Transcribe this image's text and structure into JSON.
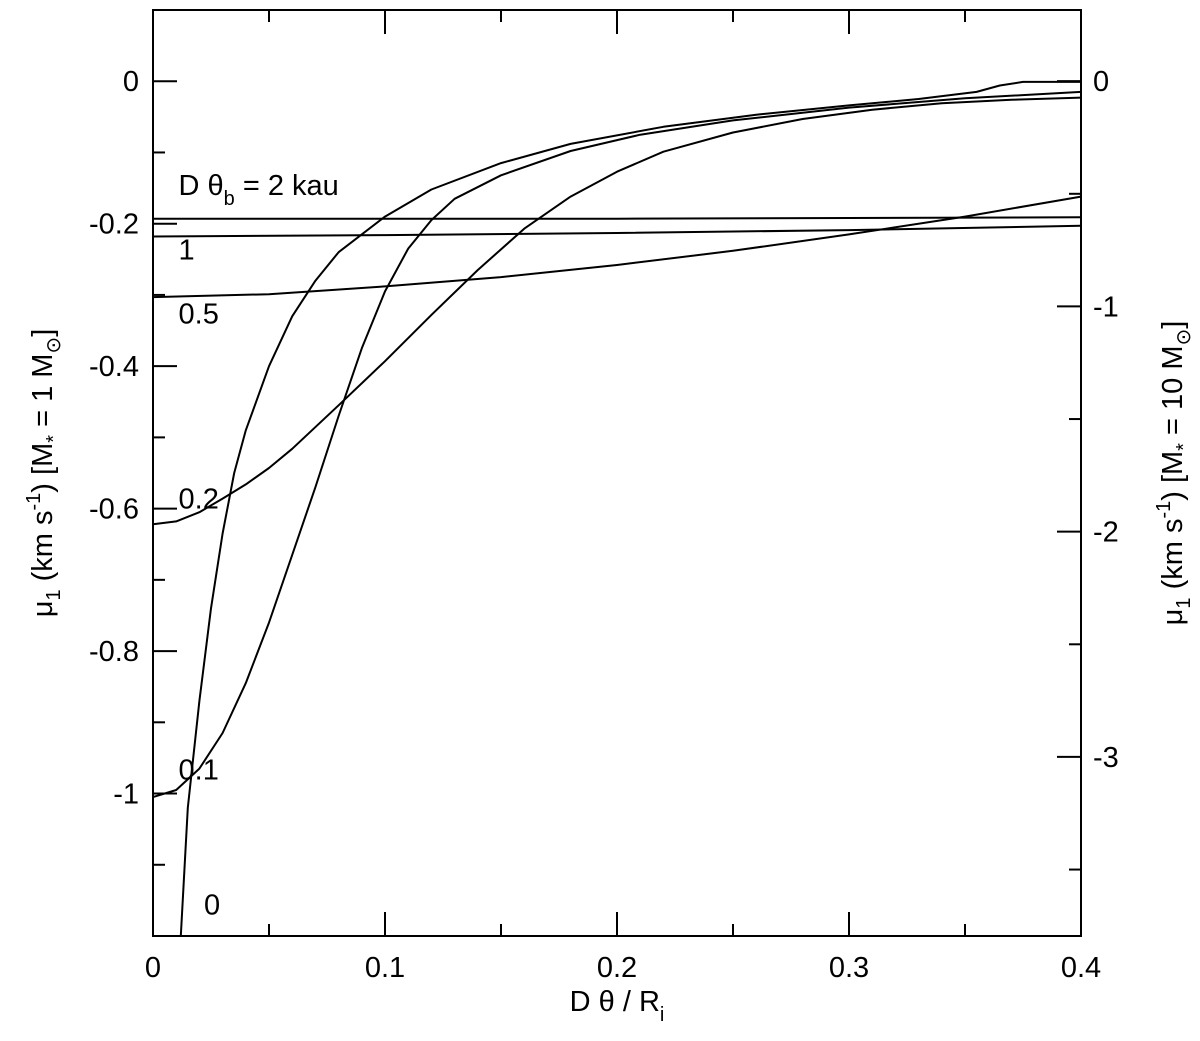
{
  "chart_data": {
    "type": "line",
    "xlabel": "D θ / R",
    "xlabel_sub": "i",
    "ylabel_left": {
      "parts": [
        "μ",
        "1",
        " (km s",
        "-1",
        ") [M",
        "*",
        " = 1 M",
        "⊙",
        "]"
      ]
    },
    "ylabel_right": {
      "parts": [
        "μ",
        "1",
        " (km s",
        "-1",
        ") [M",
        "*",
        " = 10 M",
        "⊙",
        "]"
      ]
    },
    "xlim": [
      0,
      0.4
    ],
    "ylim_left": [
      -1.2,
      0.1
    ],
    "ylim_right": [
      -3.795,
      0.316
    ],
    "x_ticks": [
      {
        "value": 0,
        "label": "0"
      },
      {
        "value": 0.1,
        "label": "0.1"
      },
      {
        "value": 0.2,
        "label": "0.2"
      },
      {
        "value": 0.3,
        "label": "0.3"
      },
      {
        "value": 0.4,
        "label": "0.4"
      }
    ],
    "y_left_ticks": [
      {
        "value": 0,
        "label": "0"
      },
      {
        "value": -0.2,
        "label": "-0.2"
      },
      {
        "value": -0.4,
        "label": "-0.4"
      },
      {
        "value": -0.6,
        "label": "-0.6"
      },
      {
        "value": -0.8,
        "label": "-0.8"
      },
      {
        "value": -1,
        "label": "-1"
      }
    ],
    "y_right_ticks": [
      {
        "value": 0,
        "label": "0"
      },
      {
        "value": -1,
        "label": "-1"
      },
      {
        "value": -2,
        "label": "-2"
      },
      {
        "value": -3,
        "label": "-3"
      }
    ],
    "grid": false,
    "series": [
      {
        "label": "D θ",
        "label_sub": "b",
        "label_suffix": " = 2 kau",
        "label_at": [
          0.011,
          -0.16
        ],
        "points": [
          [
            0,
            -0.193
          ],
          [
            0.1,
            -0.193
          ],
          [
            0.2,
            -0.193
          ],
          [
            0.3,
            -0.192
          ],
          [
            0.4,
            -0.191
          ]
        ]
      },
      {
        "label": "1",
        "label_sub": "",
        "label_suffix": "",
        "label_at": [
          0.011,
          -0.25
        ],
        "points": [
          [
            0,
            -0.218
          ],
          [
            0.1,
            -0.216
          ],
          [
            0.2,
            -0.213
          ],
          [
            0.3,
            -0.209
          ],
          [
            0.4,
            -0.203
          ]
        ]
      },
      {
        "label": "0.5",
        "label_sub": "",
        "label_suffix": "",
        "label_at": [
          0.011,
          -0.34
        ],
        "points": [
          [
            0,
            -0.303
          ],
          [
            0.05,
            -0.299
          ],
          [
            0.1,
            -0.288
          ],
          [
            0.15,
            -0.275
          ],
          [
            0.2,
            -0.258
          ],
          [
            0.25,
            -0.238
          ],
          [
            0.3,
            -0.215
          ],
          [
            0.35,
            -0.19
          ],
          [
            0.4,
            -0.162
          ]
        ]
      },
      {
        "label": "0.2",
        "label_sub": "",
        "label_suffix": "",
        "label_at": [
          0.011,
          -0.6
        ],
        "points": [
          [
            0,
            -0.622
          ],
          [
            0.01,
            -0.618
          ],
          [
            0.02,
            -0.605
          ],
          [
            0.03,
            -0.586
          ],
          [
            0.04,
            -0.566
          ],
          [
            0.05,
            -0.543
          ],
          [
            0.06,
            -0.516
          ],
          [
            0.08,
            -0.455
          ],
          [
            0.1,
            -0.393
          ],
          [
            0.12,
            -0.328
          ],
          [
            0.14,
            -0.265
          ],
          [
            0.16,
            -0.207
          ],
          [
            0.18,
            -0.162
          ],
          [
            0.2,
            -0.127
          ],
          [
            0.22,
            -0.099
          ],
          [
            0.25,
            -0.072
          ],
          [
            0.28,
            -0.053
          ],
          [
            0.31,
            -0.04
          ],
          [
            0.34,
            -0.031
          ],
          [
            0.37,
            -0.026
          ],
          [
            0.4,
            -0.023
          ]
        ]
      },
      {
        "label": "0.1",
        "label_sub": "",
        "label_suffix": "",
        "label_at": [
          0.011,
          -0.98
        ],
        "points": [
          [
            0,
            -1.005
          ],
          [
            0.01,
            -0.995
          ],
          [
            0.02,
            -0.965
          ],
          [
            0.03,
            -0.915
          ],
          [
            0.04,
            -0.845
          ],
          [
            0.05,
            -0.76
          ],
          [
            0.06,
            -0.665
          ],
          [
            0.07,
            -0.57
          ],
          [
            0.08,
            -0.47
          ],
          [
            0.09,
            -0.375
          ],
          [
            0.1,
            -0.295
          ],
          [
            0.11,
            -0.235
          ],
          [
            0.12,
            -0.195
          ],
          [
            0.13,
            -0.165
          ],
          [
            0.15,
            -0.132
          ],
          [
            0.18,
            -0.098
          ],
          [
            0.21,
            -0.075
          ],
          [
            0.25,
            -0.055
          ],
          [
            0.3,
            -0.037
          ],
          [
            0.35,
            -0.024
          ],
          [
            0.4,
            -0.015
          ]
        ]
      },
      {
        "label": "0",
        "label_sub": "",
        "label_suffix": "",
        "label_at": [
          0.022,
          -1.17
        ],
        "points": [
          [
            0.012,
            -1.2
          ],
          [
            0.015,
            -1.02
          ],
          [
            0.02,
            -0.87
          ],
          [
            0.025,
            -0.74
          ],
          [
            0.03,
            -0.635
          ],
          [
            0.035,
            -0.55
          ],
          [
            0.04,
            -0.49
          ],
          [
            0.05,
            -0.4
          ],
          [
            0.06,
            -0.33
          ],
          [
            0.07,
            -0.28
          ],
          [
            0.08,
            -0.24
          ],
          [
            0.1,
            -0.19
          ],
          [
            0.12,
            -0.152
          ],
          [
            0.15,
            -0.115
          ],
          [
            0.18,
            -0.088
          ],
          [
            0.22,
            -0.064
          ],
          [
            0.26,
            -0.047
          ],
          [
            0.3,
            -0.034
          ],
          [
            0.33,
            -0.025
          ],
          [
            0.355,
            -0.015
          ],
          [
            0.365,
            -0.006
          ],
          [
            0.375,
            -0.001
          ],
          [
            0.4,
            -0.001
          ]
        ]
      }
    ]
  }
}
